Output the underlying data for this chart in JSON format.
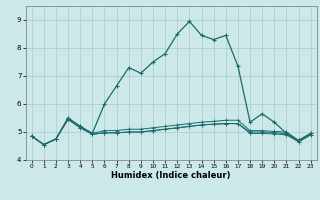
{
  "title": "",
  "xlabel": "Humidex (Indice chaleur)",
  "bg_color": "#cce8e8",
  "grid_color": "#aacccc",
  "line_color": "#1a6b6b",
  "xlim": [
    -0.5,
    23.5
  ],
  "ylim": [
    4.3,
    9.5
  ],
  "xticks": [
    0,
    1,
    2,
    3,
    4,
    5,
    6,
    7,
    8,
    9,
    10,
    11,
    12,
    13,
    14,
    15,
    16,
    17,
    18,
    19,
    20,
    21,
    22,
    23
  ],
  "yticks": [
    4,
    5,
    6,
    7,
    8,
    9
  ],
  "lines": [
    [
      4.85,
      4.55,
      4.75,
      5.5,
      5.2,
      4.95,
      6.0,
      6.65,
      7.3,
      7.1,
      7.5,
      7.8,
      8.5,
      8.95,
      8.45,
      8.3,
      8.45,
      7.35,
      5.35,
      5.65,
      5.35,
      4.95,
      4.7,
      4.95
    ],
    [
      4.85,
      4.55,
      4.75,
      5.5,
      5.2,
      4.95,
      5.05,
      5.05,
      5.1,
      5.1,
      5.15,
      5.2,
      5.25,
      5.3,
      5.35,
      5.38,
      5.42,
      5.42,
      5.05,
      5.05,
      5.02,
      5.0,
      4.7,
      4.95
    ],
    [
      4.85,
      4.55,
      4.75,
      5.45,
      5.15,
      4.92,
      4.97,
      4.97,
      5.0,
      5.0,
      5.05,
      5.1,
      5.15,
      5.2,
      5.25,
      5.28,
      5.3,
      5.3,
      4.95,
      4.95,
      4.93,
      4.9,
      4.65,
      4.9
    ],
    [
      4.85,
      4.55,
      4.75,
      5.45,
      5.15,
      4.92,
      4.97,
      4.97,
      5.0,
      5.0,
      5.05,
      5.1,
      5.15,
      5.2,
      5.25,
      5.28,
      5.3,
      5.3,
      5.0,
      5.0,
      4.98,
      4.93,
      4.65,
      4.9
    ]
  ]
}
